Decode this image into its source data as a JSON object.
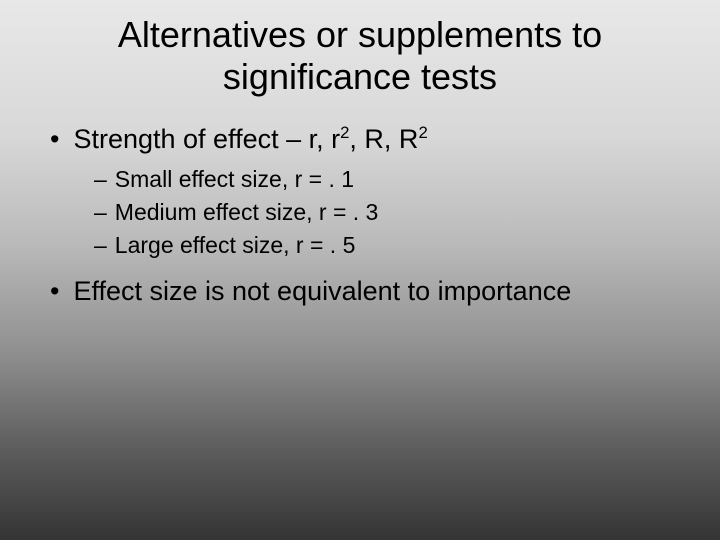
{
  "title_line1": "Alternatives or supplements to",
  "title_line2": "significance tests",
  "bullet1_prefix": "Strength of effect – r, r",
  "bullet1_mid": ", R, R",
  "sup2a": "2",
  "sup2b": "2",
  "sub1": "Small effect size, r = . 1",
  "sub2": "Medium effect size, r = . 3",
  "sub3": "Large effect size, r = . 5",
  "bullet2": "Effect size is not equivalent to importance",
  "dot": "•",
  "dash": "–"
}
